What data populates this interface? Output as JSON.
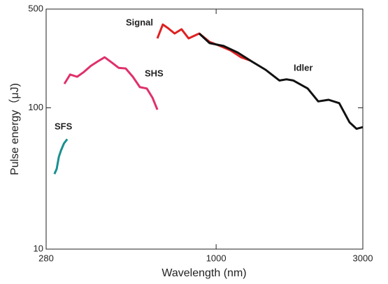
{
  "chart_data": {
    "type": "line",
    "x_label": "Wavelength (nm)",
    "y_label": "Pulse energy（μJ)",
    "xscale": "log",
    "yscale": "log",
    "xlim": [
      280,
      3000
    ],
    "ylim": [
      10,
      500
    ],
    "xticks": [
      280,
      1000,
      3000
    ],
    "yticks": [
      10,
      100,
      500
    ],
    "series": [
      {
        "name": "SFS",
        "color": "#1a9090",
        "x": [
          298,
          303,
          308,
          313,
          320,
          328
        ],
        "values": [
          34,
          37,
          45,
          50,
          56,
          60
        ]
      },
      {
        "name": "SHS",
        "color": "#e0306a",
        "x": [
          321,
          335,
          353,
          371,
          391,
          412,
          434,
          458,
          482,
          508,
          536,
          565,
          595,
          621,
          644
        ],
        "values": [
          148,
          172,
          166,
          179,
          198,
          213,
          228,
          209,
          192,
          190,
          166,
          140,
          137,
          118,
          97
        ]
      },
      {
        "name": "Signal",
        "color": "#e02020",
        "x": [
          644,
          671,
          696,
          733,
          772,
          814,
          881,
          952,
          1030,
          1114,
          1206,
          1293
        ],
        "values": [
          310,
          389,
          368,
          336,
          360,
          310,
          336,
          293,
          274,
          255,
          228,
          216
        ]
      },
      {
        "name": "Idler",
        "color": "#111111",
        "x": [
          881,
          952,
          1058,
          1176,
          1305,
          1448,
          1607,
          1694,
          1784,
          1985,
          2148,
          2321,
          2514,
          2716,
          2862,
          3000
        ],
        "values": [
          336,
          287,
          274,
          246,
          213,
          186,
          156,
          159,
          156,
          137,
          111,
          114,
          108,
          79,
          71,
          73
        ]
      }
    ]
  }
}
